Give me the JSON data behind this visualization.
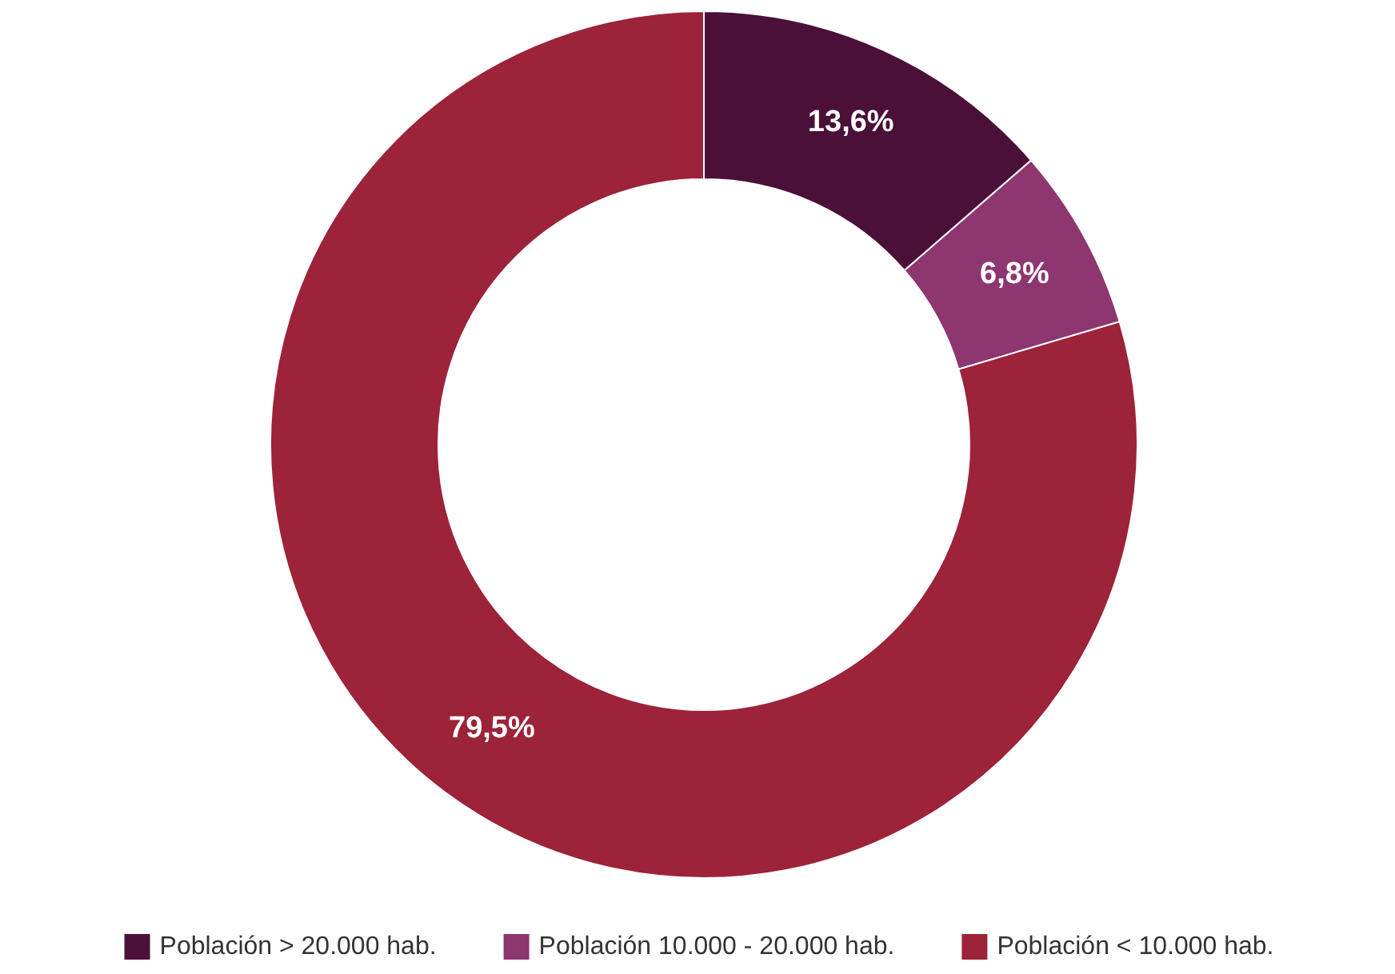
{
  "chart_data": {
    "type": "donut",
    "categories": [
      "Población > 20.000 hab.",
      "Población 10.000 - 20.000 hab.",
      "Población < 10.000 hab."
    ],
    "values": [
      13.6,
      6.8,
      79.5
    ],
    "colors": [
      "#4a1038",
      "#8e3670",
      "#9c2339"
    ],
    "value_labels": [
      "13,6%",
      "6,8%",
      "79,5%"
    ],
    "legend": "bottom"
  }
}
